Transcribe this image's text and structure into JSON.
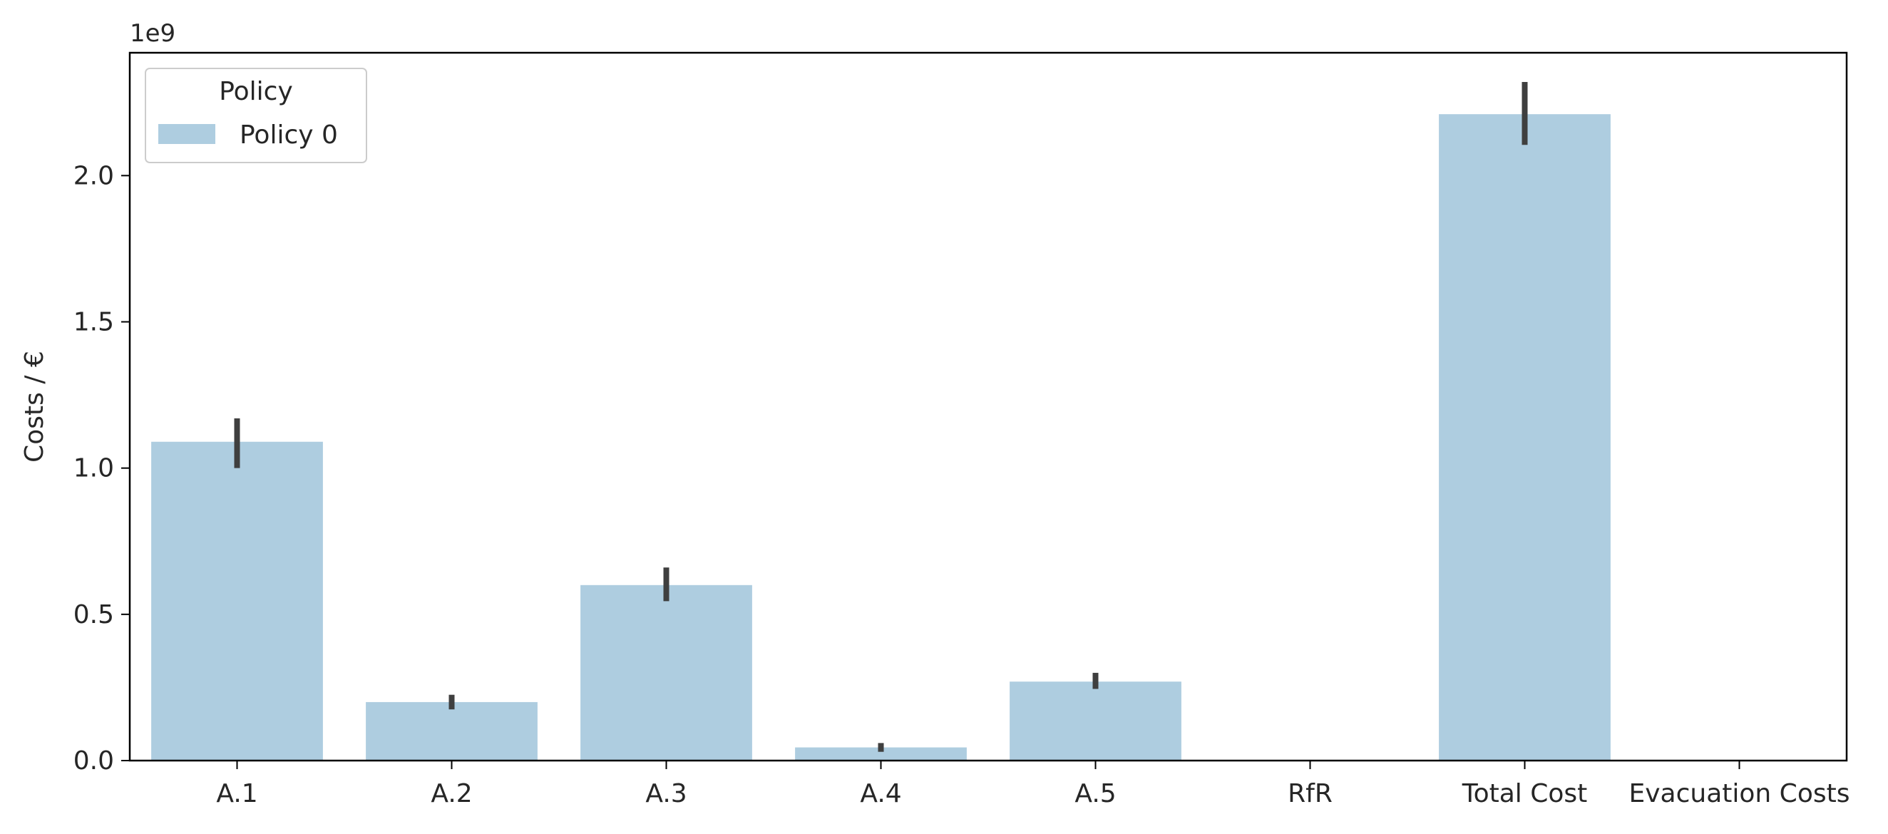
{
  "chart_data": {
    "type": "bar",
    "title": "",
    "xlabel": "",
    "ylabel": "Costs / €",
    "offset_label": "1e9",
    "ylim": [
      0,
      2.42
    ],
    "yticks": [
      0.0,
      0.5,
      1.0,
      1.5,
      2.0
    ],
    "ytick_labels": [
      "0.0",
      "0.5",
      "1.0",
      "1.5",
      "2.0"
    ],
    "categories": [
      "A.1",
      "A.2",
      "A.3",
      "A.4",
      "A.5",
      "RfR",
      "Total Cost",
      "Evacuation Costs"
    ],
    "series": [
      {
        "name": "Policy 0",
        "color": "#aecde0",
        "values": [
          1.09,
          0.2,
          0.6,
          0.045,
          0.27,
          0.0,
          2.21,
          0.0
        ],
        "error_low": [
          1.0,
          0.175,
          0.545,
          0.03,
          0.245,
          0.0,
          2.105,
          0.0
        ],
        "error_high": [
          1.17,
          0.225,
          0.66,
          0.06,
          0.3,
          0.0,
          2.32,
          0.0
        ]
      }
    ],
    "errorbar_color": "#3f3f3f",
    "grid": false,
    "legend": {
      "title": "Policy",
      "position": "top-left"
    }
  }
}
